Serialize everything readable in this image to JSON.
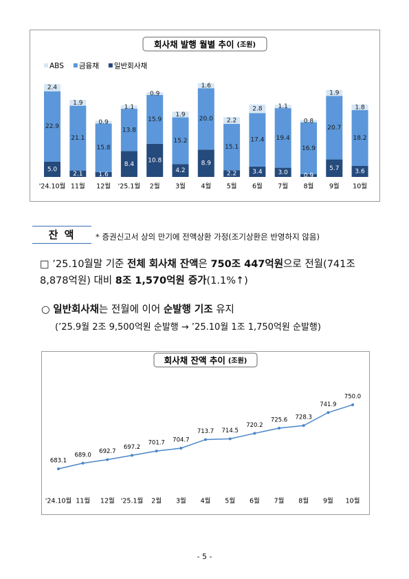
{
  "chart_data": [
    {
      "type": "stacked-bar",
      "title": "회사채 발행 월별 추이",
      "subtitle": "(조원)",
      "categories": [
        "'24.10월",
        "11월",
        "12월",
        "'25.1월",
        "2월",
        "3월",
        "4월",
        "5월",
        "6월",
        "7월",
        "8월",
        "9월",
        "10월"
      ],
      "legend": [
        "ABS",
        "금융채",
        "일반회사채"
      ],
      "series": [
        {
          "name": "일반회사채",
          "color": "#254a7c",
          "label_color": "#ffffff",
          "values": [
            5.0,
            2.1,
            1.6,
            8.4,
            10.8,
            4.2,
            8.9,
            2.2,
            3.4,
            3.0,
            0.9,
            5.7,
            3.6
          ],
          "value_labels": [
            "5.0",
            "2.1",
            "1.6",
            "8.4",
            "10.8",
            "4.2",
            "8.9",
            "2.2",
            "3.4",
            "3.0",
            "0.9",
            "5.7",
            "3.6"
          ]
        },
        {
          "name": "금융채",
          "color": "#5b97da",
          "label_color": "#1a1a1a",
          "values": [
            22.9,
            21.1,
            15.8,
            13.8,
            15.9,
            15.2,
            20.0,
            15.1,
            17.4,
            19.4,
            16.9,
            20.7,
            18.2
          ],
          "value_labels": [
            "22.9",
            "21.1",
            "15.8",
            "13.8",
            "15.9",
            "15.2",
            "20.0",
            "15.1",
            "17.4",
            "19.4",
            "16.9",
            "20.7",
            "18.2"
          ]
        },
        {
          "name": "ABS",
          "color": "#d6e6f5",
          "label_color": "#1a1a1a",
          "values": [
            2.4,
            1.9,
            0.9,
            1.1,
            0.9,
            1.9,
            1.6,
            2.2,
            2.8,
            1.1,
            0.8,
            1.9,
            1.8
          ],
          "value_labels": [
            "2.4",
            "1.9",
            "0.9",
            "1.1",
            "0.9",
            "1.9",
            "1.6",
            "2.2",
            "2.8",
            "1.1",
            "0.8",
            "1.9",
            "1.8"
          ]
        }
      ]
    },
    {
      "type": "line",
      "title": "회사채 잔액 추이",
      "subtitle": "(조원)",
      "color": "#4a86c8",
      "categories": [
        "'24.10월",
        "11월",
        "12월",
        "'25.1월",
        "2월",
        "3월",
        "4월",
        "5월",
        "6월",
        "7월",
        "8월",
        "9월",
        "10월"
      ],
      "values": [
        683.1,
        689.0,
        692.7,
        697.2,
        701.7,
        704.7,
        713.7,
        714.5,
        720.2,
        725.6,
        728.3,
        741.9,
        750.0
      ],
      "value_labels": [
        "683.1",
        "689.0",
        "692.7",
        "697.2",
        "701.7",
        "704.7",
        "713.7",
        "714.5",
        "720.2",
        "725.6",
        "728.3",
        "741.9",
        "750.0"
      ]
    }
  ],
  "document": {
    "section": "잔 액",
    "note": "* 증권신고서 상의 만기에 전액상환 가정(조기상환은 반영하지 않음)",
    "paragraphs": [
      {
        "parts": [
          {
            "text": "□ ’25.10월말 기준 ",
            "bold": false
          },
          {
            "text": "전체 회사채 잔액",
            "bold": true
          },
          {
            "text": "은 ",
            "bold": false
          },
          {
            "text": "750조 447억원",
            "bold": true
          },
          {
            "text": "으로 전월(741조 8,878억원) 대비 ",
            "bold": false
          },
          {
            "text": "8조 1,570억원 증가",
            "bold": true
          },
          {
            "text": "(1.1%↑)",
            "bold": false
          }
        ]
      },
      {
        "parts": [
          {
            "text": "○ ",
            "bold": false
          },
          {
            "text": "일반회사채",
            "bold": true
          },
          {
            "text": "는 전월에 이어 ",
            "bold": false
          },
          {
            "text": "순발행 기조",
            "bold": true
          },
          {
            "text": " 유지",
            "bold": false
          }
        ]
      },
      {
        "parts": [
          {
            "text": "(’25.9월 2조 9,500억원 순발행 → ’25.10월 1조 1,750억원 순발행)",
            "bold": false
          }
        ]
      }
    ],
    "page_number": "- 5 -"
  }
}
